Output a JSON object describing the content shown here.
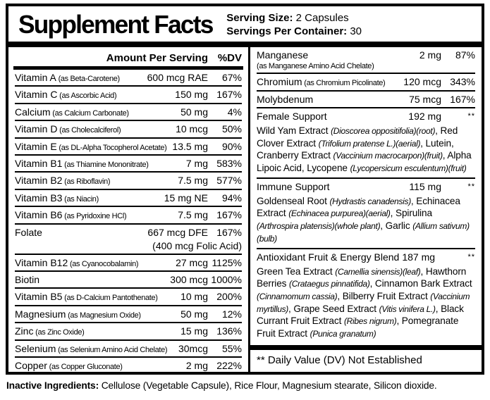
{
  "label": {
    "title": "Supplement Facts",
    "serving": {
      "size_label": "Serving Size:",
      "size_value": " 2 Capsules",
      "container_label": "Servings Per Container:",
      "container_value": " 30"
    },
    "columns_header": {
      "amount": "Amount Per Serving",
      "dv": "%DV"
    },
    "left_rows": [
      {
        "name": "Vitamin A",
        "detail": "(as Beta-Carotene)",
        "amount": "600 mcg RAE",
        "dv": "67%"
      },
      {
        "name": "Vitamin C",
        "detail": "(as Ascorbic Acid)",
        "amount": "150 mg",
        "dv": "167%"
      },
      {
        "name": "Calcium",
        "detail": "(as Calcium Carbonate)",
        "amount": "50 mg",
        "dv": "4%"
      },
      {
        "name": "Vitamin D",
        "detail": "(as Cholecalciferol)",
        "amount": "10 mcg",
        "dv": "50%"
      },
      {
        "name": "Vitamin E",
        "detail": "(as DL-Alpha Tocopherol Acetate)",
        "amount": "13.5 mg",
        "dv": "90%"
      },
      {
        "name": "Vitamin B1",
        "detail": "(as Thiamine Mononitrate)",
        "amount": "7 mg",
        "dv": "583%"
      },
      {
        "name": "Vitamin B2",
        "detail": "(as Riboflavin)",
        "amount": "7.5 mg",
        "dv": "577%"
      },
      {
        "name": "Vitamin B3",
        "detail": "(as Niacin)",
        "amount": "15 mg NE",
        "dv": "94%"
      },
      {
        "name": "Vitamin B6",
        "detail": "(as Pyridoxine HCl)",
        "amount": "7.5 mg",
        "dv": "167%"
      },
      {
        "name": "Folate",
        "amount": "667 mcg DFE",
        "dv": "167%",
        "sub": "(400 mcg Folic Acid)"
      },
      {
        "name": "Vitamin B12",
        "detail": "(as Cyanocobalamin)",
        "amount": "27 mcg",
        "dv": "1125%"
      },
      {
        "name": "Biotin",
        "amount": "300 mcg",
        "dv": "1000%"
      },
      {
        "name": "Vitamin B5",
        "detail": "(as D-Calcium Pantothenate)",
        "amount": "10 mg",
        "dv": "200%"
      },
      {
        "name": "Magnesium",
        "detail": "(as Magnesium Oxide)",
        "amount": "50 mg",
        "dv": "12%"
      },
      {
        "name": "Zinc",
        "detail": "(as Zinc Oxide)",
        "amount": "15 mg",
        "dv": "136%"
      },
      {
        "name": "Selenium",
        "detail": "(as Selenium Amino Acid Chelate)",
        "amount": "30mcg",
        "dv": "55%"
      },
      {
        "name": "Copper",
        "detail": "(as Copper Gluconate)",
        "amount": "2 mg",
        "dv": "222%"
      }
    ],
    "right_rows": [
      {
        "name": "Manganese",
        "detail": "(as Manganese Amino Acid Chelate)",
        "detail_block": true,
        "amount": "2 mg",
        "dv": "87%"
      },
      {
        "name": "Chromium",
        "detail": "(as Chromium Picolinate)",
        "amount": "120 mcg",
        "dv": "343%"
      },
      {
        "name": "Molybdenum",
        "amount": "75 mcg",
        "dv": "167%"
      },
      {
        "name": "Female Support",
        "amount": "192 mg",
        "dv": "**",
        "dv_note": true,
        "desc": [
          {
            "t": "Wild Yam Extract ",
            "i": false
          },
          {
            "t": "(Dioscorea oppositifolia)(root)",
            "i": true
          },
          {
            "t": ", Red Clover Extract ",
            "i": false
          },
          {
            "t": "(Trifolium pratense L.)(aerial)",
            "i": true
          },
          {
            "t": ", Lutein, Cranberry Extract ",
            "i": false
          },
          {
            "t": "(Vaccinium macrocarpon)(fruit)",
            "i": true
          },
          {
            "t": ", Alpha Lipoic Acid, Lycopene ",
            "i": false
          },
          {
            "t": "(Lycopersicum esculentum)(fruit)",
            "i": true
          }
        ]
      },
      {
        "name": "Immune Support",
        "amount": "115 mg",
        "dv": "**",
        "dv_note": true,
        "desc": [
          {
            "t": "Goldenseal Root ",
            "i": false
          },
          {
            "t": "(Hydrastis canadensis)",
            "i": true
          },
          {
            "t": ", Echinacea Extract ",
            "i": false
          },
          {
            "t": "(Echinacea purpurea)(aerial)",
            "i": true
          },
          {
            "t": ", Spirulina ",
            "i": false
          },
          {
            "t": "(Arthrospira platensis)(whole plant)",
            "i": true
          },
          {
            "t": ", Garlic ",
            "i": false
          },
          {
            "t": "(Allium sativum)(bulb)",
            "i": true
          }
        ]
      },
      {
        "name": "Antioxidant Fruit & Energy Blend",
        "inline_amount": true,
        "amount": "187 mg",
        "dv": "**",
        "dv_note": true,
        "desc": [
          {
            "t": "Green Tea Extract ",
            "i": false
          },
          {
            "t": "(Camellia sinensis)(leaf)",
            "i": true
          },
          {
            "t": ", Hawthorn Berries ",
            "i": false
          },
          {
            "t": "(Crataegus pinnatifida)",
            "i": true
          },
          {
            "t": ", Cinnamon Bark Extract ",
            "i": false
          },
          {
            "t": "(Cinnamomum cassia)",
            "i": true
          },
          {
            "t": ", Bilberry Fruit Extract ",
            "i": false
          },
          {
            "t": "(Vaccinium myrtillus)",
            "i": true
          },
          {
            "t": ", Grape Seed Extract ",
            "i": false
          },
          {
            "t": "(Vitis vinifera L.)",
            "i": true
          },
          {
            "t": ", Black Currant Fruit Extract ",
            "i": false
          },
          {
            "t": "(Ribes nigrum)",
            "i": true
          },
          {
            "t": ", Pomegranate Fruit Extract ",
            "i": false
          },
          {
            "t": "(Punica granatum)",
            "i": true
          }
        ]
      }
    ],
    "footnote": "** Daily Value (DV) Not Established",
    "inactive": {
      "label": "Inactive Ingredients:",
      "value": " Cellulose (Vegetable Capsule), Rice Flour, Magnesium stearate, Silicon dioxide."
    }
  }
}
